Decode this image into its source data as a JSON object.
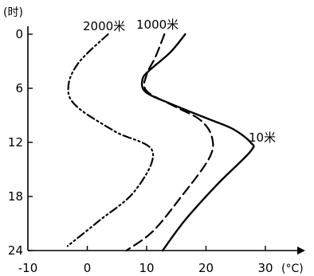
{
  "chart_data": {
    "type": "line",
    "y_axis_unit": "(时)",
    "x_axis_unit": "(°C)",
    "xlim": [
      -10,
      35
    ],
    "ylim": [
      24,
      0
    ],
    "x_ticks": [
      "-10",
      "0",
      "10",
      "20",
      "30"
    ],
    "y_ticks": [
      "0",
      "6",
      "12",
      "18",
      "24"
    ],
    "series": [
      {
        "name": "10米",
        "style": "solid",
        "points": [
          {
            "x": 16.5,
            "y": 0
          },
          {
            "x": 14,
            "y": 2
          },
          {
            "x": 10.5,
            "y": 4
          },
          {
            "x": 9.3,
            "y": 5
          },
          {
            "x": 9.8,
            "y": 6.4
          },
          {
            "x": 14,
            "y": 7.7
          },
          {
            "x": 20,
            "y": 9.3
          },
          {
            "x": 24.5,
            "y": 10.5
          },
          {
            "x": 27.5,
            "y": 12
          },
          {
            "x": 27.5,
            "y": 13
          },
          {
            "x": 22,
            "y": 16.6
          },
          {
            "x": 16.5,
            "y": 20.6
          },
          {
            "x": 12.7,
            "y": 24
          }
        ]
      },
      {
        "name": "1000米",
        "style": "dashed",
        "points": [
          {
            "x": 13,
            "y": 0
          },
          {
            "x": 11.5,
            "y": 2.5
          },
          {
            "x": 10,
            "y": 4.5
          },
          {
            "x": 10,
            "y": 6.3
          },
          {
            "x": 15,
            "y": 8.1
          },
          {
            "x": 19,
            "y": 9.5
          },
          {
            "x": 21,
            "y": 11.4
          },
          {
            "x": 20.5,
            "y": 13.8
          },
          {
            "x": 15.5,
            "y": 18.3
          },
          {
            "x": 11,
            "y": 21.9
          },
          {
            "x": 6.6,
            "y": 24
          }
        ]
      },
      {
        "name": "2000米",
        "style": "dash-dot-dot",
        "points": [
          {
            "x": 3.5,
            "y": 0
          },
          {
            "x": -1.5,
            "y": 3.2
          },
          {
            "x": -3.2,
            "y": 5.9
          },
          {
            "x": -1.8,
            "y": 8
          },
          {
            "x": 4.7,
            "y": 10.8
          },
          {
            "x": 11,
            "y": 13
          },
          {
            "x": 8,
            "y": 17.4
          },
          {
            "x": 1.8,
            "y": 20.8
          },
          {
            "x": -3.3,
            "y": 23.5
          }
        ]
      }
    ]
  }
}
